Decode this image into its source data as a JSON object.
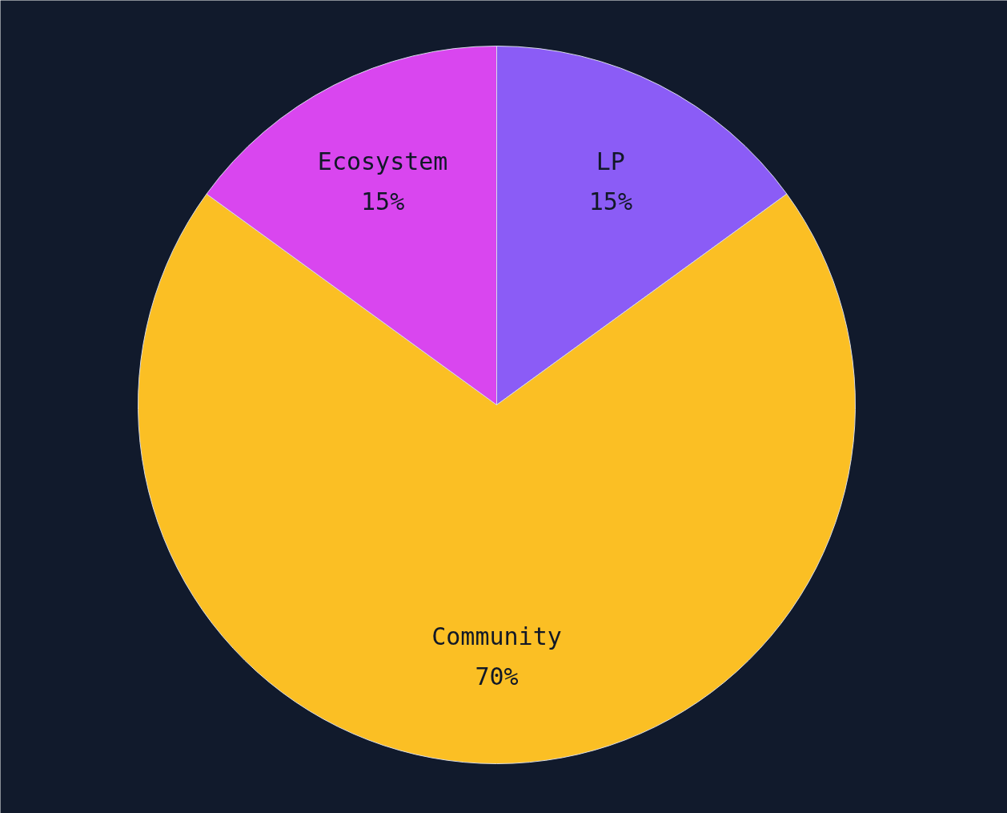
{
  "chart_data": {
    "type": "pie",
    "categories": [
      "LP",
      "Community",
      "Ecosystem"
    ],
    "values": [
      15,
      70,
      15
    ],
    "value_labels": [
      "15%",
      "70%",
      "15%"
    ],
    "colors": [
      "#8b5cf6",
      "#fbbf24",
      "#d946ef"
    ]
  }
}
